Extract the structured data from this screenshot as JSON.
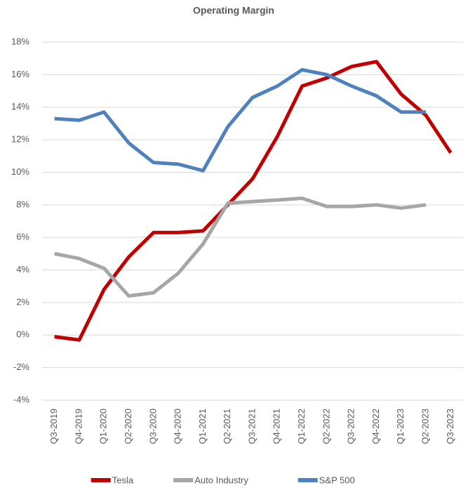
{
  "chart_data": {
    "type": "line",
    "title": "Operating Margin",
    "categories": [
      "Q3-2019",
      "Q4-2019",
      "Q1-2020",
      "Q2-2020",
      "Q3-2020",
      "Q4-2020",
      "Q1-2021",
      "Q2-2021",
      "Q3-2021",
      "Q4-2021",
      "Q1-2022",
      "Q2-2022",
      "Q3-2022",
      "Q4-2022",
      "Q1-2023",
      "Q2-2023",
      "Q3-2023"
    ],
    "series": [
      {
        "name": "Tesla",
        "color": "#c00000",
        "values": [
          -0.1,
          -0.3,
          2.8,
          4.8,
          6.3,
          6.3,
          6.4,
          8.0,
          9.6,
          12.2,
          15.3,
          15.8,
          16.5,
          16.8,
          14.8,
          13.5,
          11.2
        ]
      },
      {
        "name": "Auto Industry",
        "color": "#a6a6a6",
        "values": [
          5.0,
          4.7,
          4.1,
          2.4,
          2.6,
          3.8,
          5.6,
          8.1,
          8.2,
          8.3,
          8.4,
          7.9,
          7.9,
          8.0,
          7.8,
          8.0,
          null
        ]
      },
      {
        "name": "S&P 500",
        "color": "#4f81bd",
        "values": [
          13.3,
          13.2,
          13.7,
          11.8,
          10.6,
          10.5,
          10.1,
          12.8,
          14.6,
          15.3,
          16.3,
          16.0,
          15.3,
          14.7,
          13.7,
          13.7,
          null
        ]
      }
    ],
    "ylim": [
      -4,
      18
    ],
    "yticks": [
      {
        "value": -4,
        "label": "-4%"
      },
      {
        "value": -2,
        "label": "-2%"
      },
      {
        "value": 0,
        "label": "0%"
      },
      {
        "value": 2,
        "label": "2%"
      },
      {
        "value": 4,
        "label": "4%"
      },
      {
        "value": 6,
        "label": "6%"
      },
      {
        "value": 8,
        "label": "8%"
      },
      {
        "value": 10,
        "label": "10%"
      },
      {
        "value": 12,
        "label": "12%"
      },
      {
        "value": 14,
        "label": "14%"
      },
      {
        "value": 16,
        "label": "16%"
      },
      {
        "value": 18,
        "label": "18%"
      }
    ],
    "grid": true,
    "legend": "bottom"
  }
}
